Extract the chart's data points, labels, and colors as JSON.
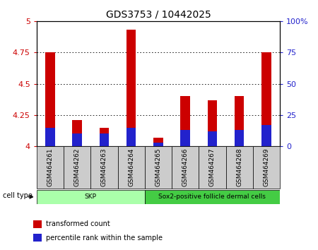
{
  "title": "GDS3753 / 10442025",
  "samples": [
    "GSM464261",
    "GSM464262",
    "GSM464263",
    "GSM464264",
    "GSM464265",
    "GSM464266",
    "GSM464267",
    "GSM464268",
    "GSM464269"
  ],
  "transformed_count": [
    4.75,
    4.21,
    4.15,
    4.93,
    4.07,
    4.4,
    4.37,
    4.4,
    4.75
  ],
  "percentile_rank": [
    15,
    10,
    10,
    15,
    3,
    13,
    12,
    13,
    17
  ],
  "ylim_left": [
    4.0,
    5.0
  ],
  "ylim_right": [
    0,
    100
  ],
  "yticks_left": [
    4.0,
    4.25,
    4.5,
    4.75,
    5.0
  ],
  "ytick_labels_left": [
    "4",
    "4.25",
    "4.5",
    "4.75",
    "5"
  ],
  "yticks_right": [
    0,
    25,
    50,
    75,
    100
  ],
  "ytick_labels_right": [
    "0",
    "25",
    "50",
    "75",
    "100%"
  ],
  "bar_bottom": 4.0,
  "bar_color_red": "#CC0000",
  "bar_color_blue": "#2222CC",
  "blue_bar_scale": 0.01,
  "cell_types": [
    {
      "label": "SKP",
      "start": 0,
      "end": 4,
      "color": "#AAFFAA"
    },
    {
      "label": "Sox2-positive follicle dermal cells",
      "start": 4,
      "end": 9,
      "color": "#44CC44"
    }
  ],
  "cell_type_label": "cell type",
  "legend_items": [
    {
      "label": "transformed count",
      "color": "#CC0000"
    },
    {
      "label": "percentile rank within the sample",
      "color": "#2222CC"
    }
  ],
  "bar_width": 0.35,
  "spine_color": "#000000",
  "grid_color": "#000000",
  "bg_color": "#FFFFFF",
  "tick_color_left": "#CC0000",
  "tick_color_right": "#2222CC",
  "sample_box_color": "#CCCCCC",
  "label_fontsize": 7,
  "title_fontsize": 10
}
